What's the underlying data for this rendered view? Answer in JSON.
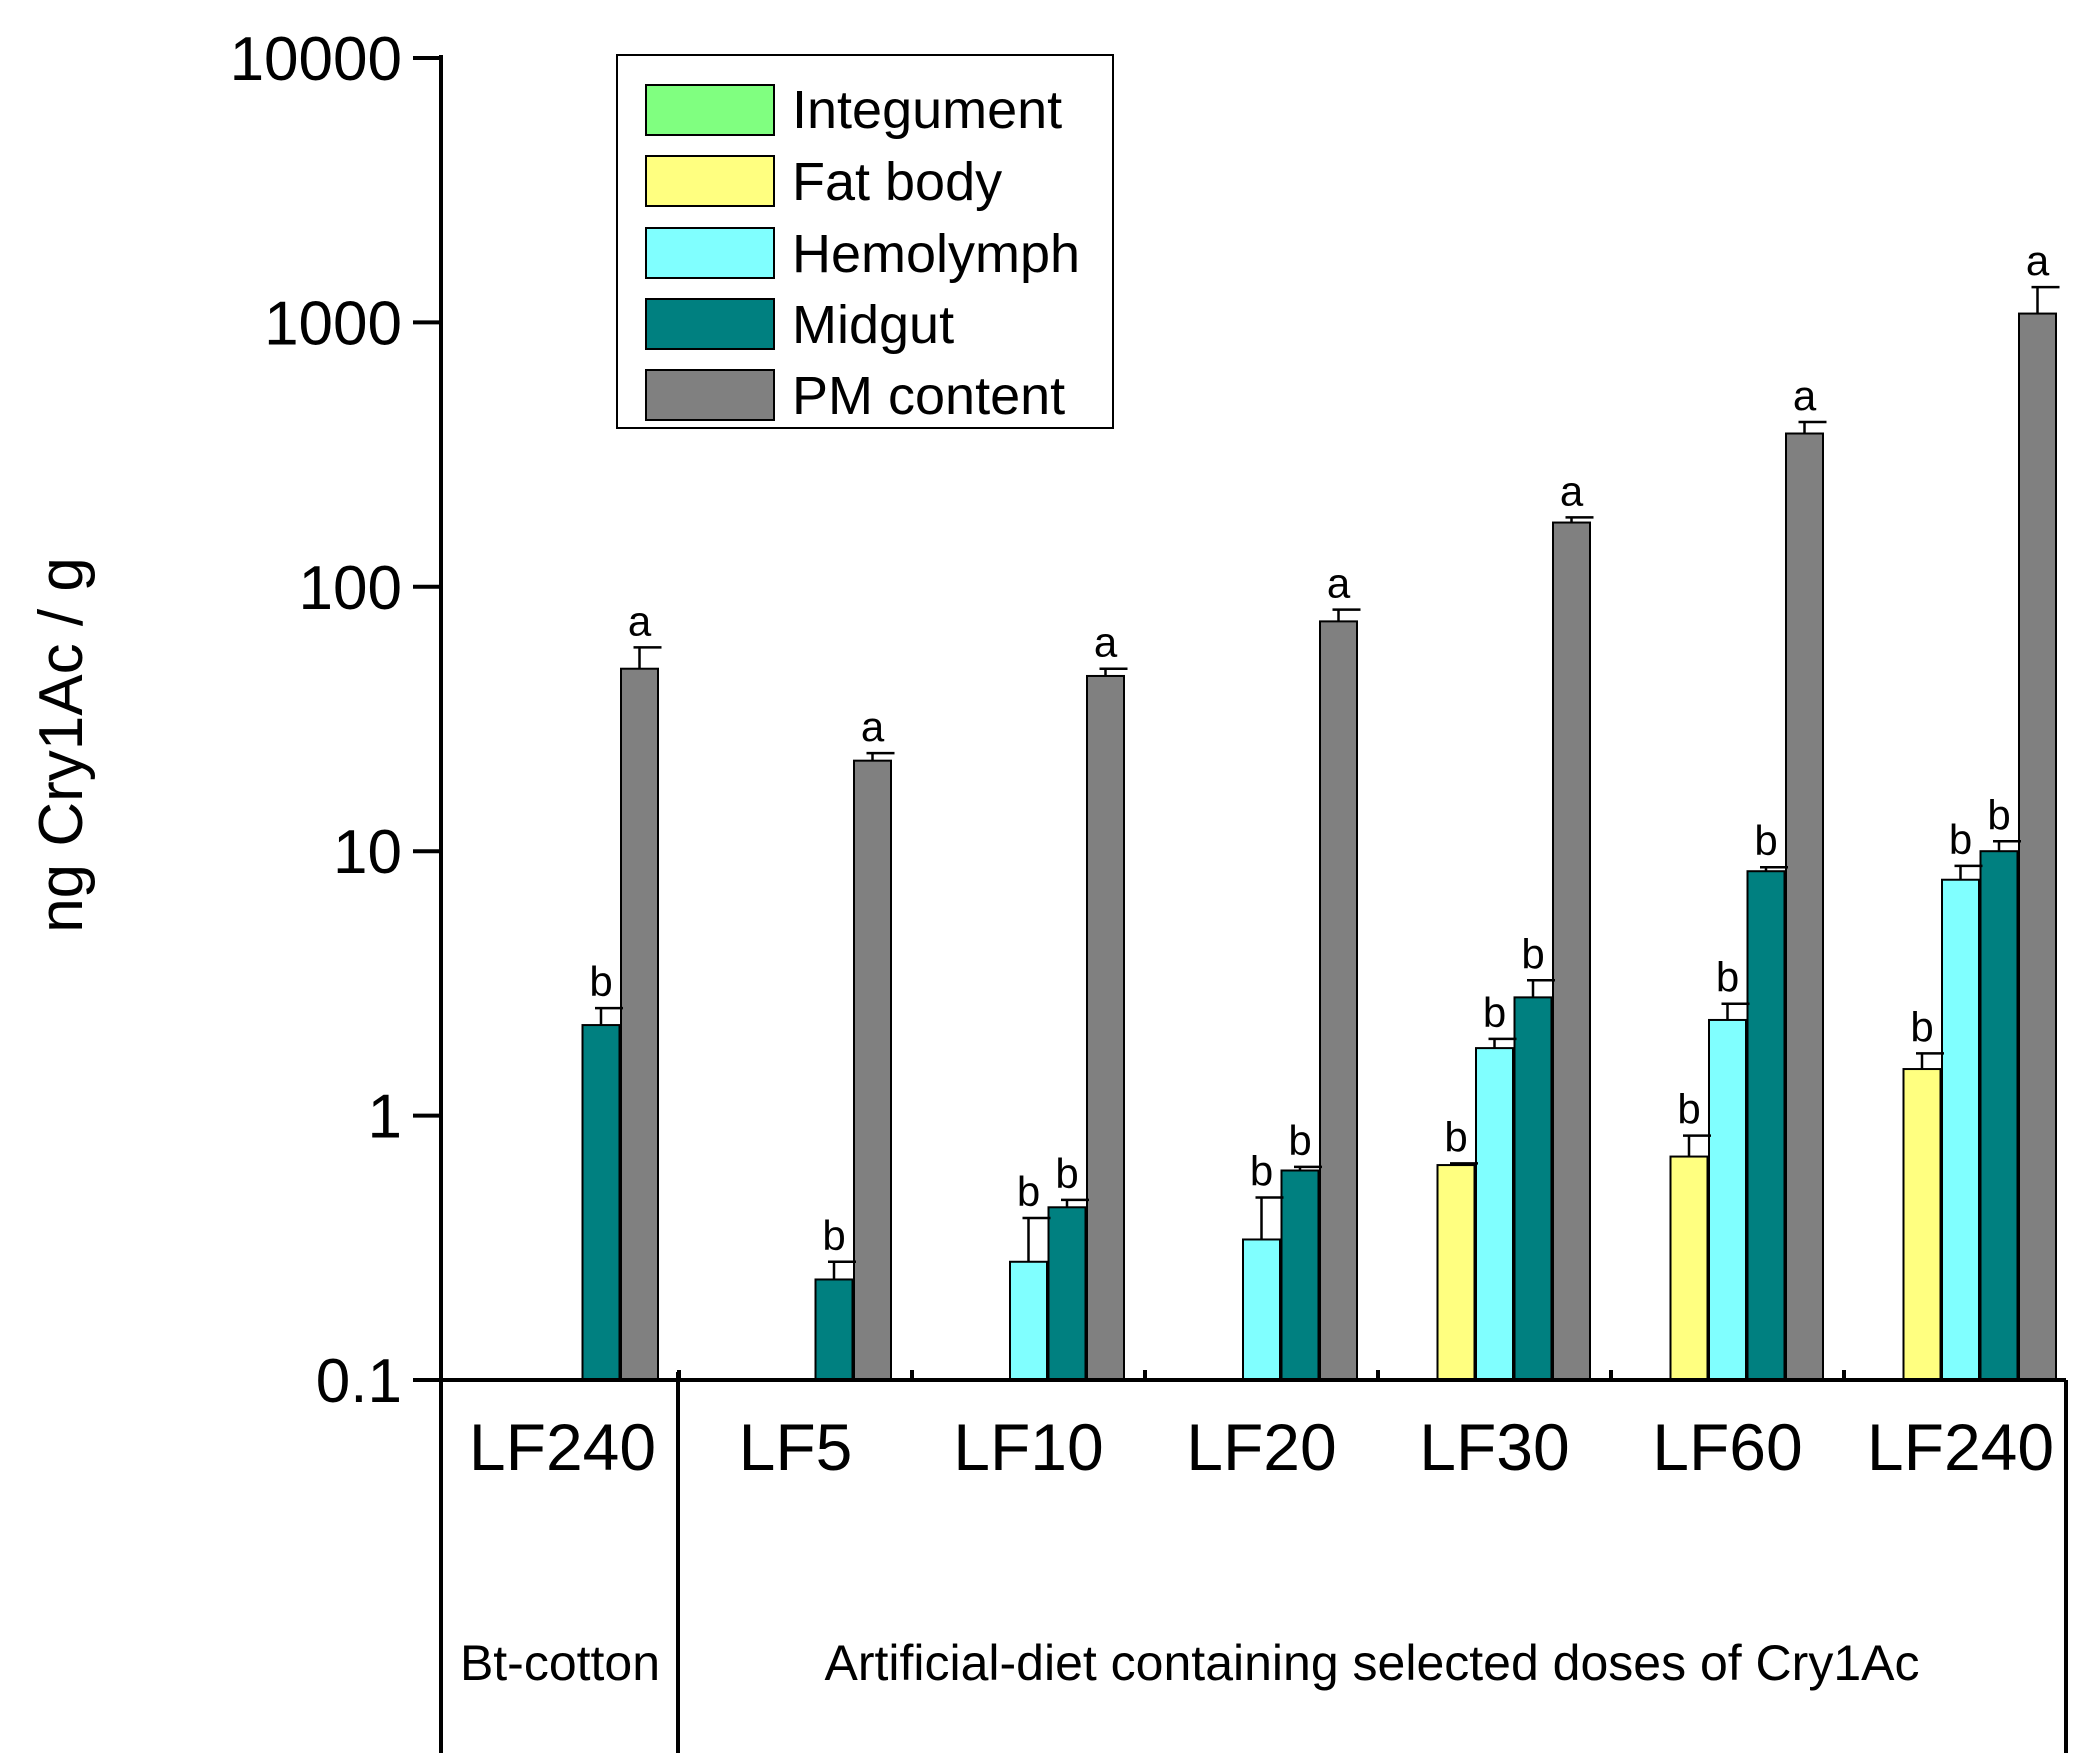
{
  "chart_data": {
    "type": "bar",
    "yscale": "log",
    "ylim": [
      0.1,
      10000
    ],
    "ylabel": "ng Cry1Ac / g",
    "yticks": [
      0.1,
      1,
      10,
      100,
      1000,
      10000
    ],
    "ytick_labels": [
      "0.1",
      "1",
      "10",
      "100",
      "1000",
      "10000"
    ],
    "categories": [
      "LF240",
      "LF5",
      "LF10",
      "LF20",
      "LF30",
      "LF60",
      "LF240"
    ],
    "groups": [
      {
        "label": "Bt-cotton",
        "categories": [
          0
        ]
      },
      {
        "label": "Artificial-diet containing selected doses of Cry1Ac",
        "categories": [
          1,
          2,
          3,
          4,
          5,
          6
        ]
      }
    ],
    "legend_position": "top-left",
    "series": [
      {
        "name": "Integument",
        "color": "#80ff80",
        "values": [
          null,
          null,
          null,
          null,
          null,
          null,
          null
        ],
        "errors": [
          null,
          null,
          null,
          null,
          null,
          null,
          null
        ],
        "labels": [
          null,
          null,
          null,
          null,
          null,
          null,
          null
        ]
      },
      {
        "name": "Fat body",
        "color": "#ffff80",
        "values": [
          null,
          null,
          null,
          null,
          0.65,
          0.7,
          1.5
        ],
        "errors": [
          null,
          null,
          null,
          null,
          0.01,
          0.14,
          0.22
        ],
        "labels": [
          null,
          null,
          null,
          null,
          "b",
          "b",
          "b"
        ]
      },
      {
        "name": "Hemolymph",
        "color": "#80ffff",
        "values": [
          null,
          null,
          0.28,
          0.34,
          1.8,
          2.3,
          7.8
        ],
        "errors": [
          null,
          null,
          0.13,
          0.15,
          0.15,
          0.35,
          1.0
        ],
        "labels": [
          null,
          null,
          "b",
          "b",
          "b",
          "b",
          "b"
        ]
      },
      {
        "name": "Midgut",
        "color": "#008080",
        "values": [
          2.2,
          0.24,
          0.45,
          0.62,
          2.8,
          8.4,
          10.0
        ],
        "errors": [
          0.35,
          0.04,
          0.03,
          0.02,
          0.45,
          0.3,
          0.9
        ],
        "labels": [
          "b",
          "b",
          "b",
          "b",
          "b",
          "b",
          "b"
        ]
      },
      {
        "name": "PM content",
        "color": "#808080",
        "values": [
          49,
          22,
          46,
          74,
          175,
          380,
          1080
        ],
        "errors": [
          10,
          1.5,
          3,
          8,
          8,
          40,
          280
        ],
        "labels": [
          "a",
          "a",
          "a",
          "a",
          "a",
          "a",
          "a"
        ]
      }
    ]
  }
}
